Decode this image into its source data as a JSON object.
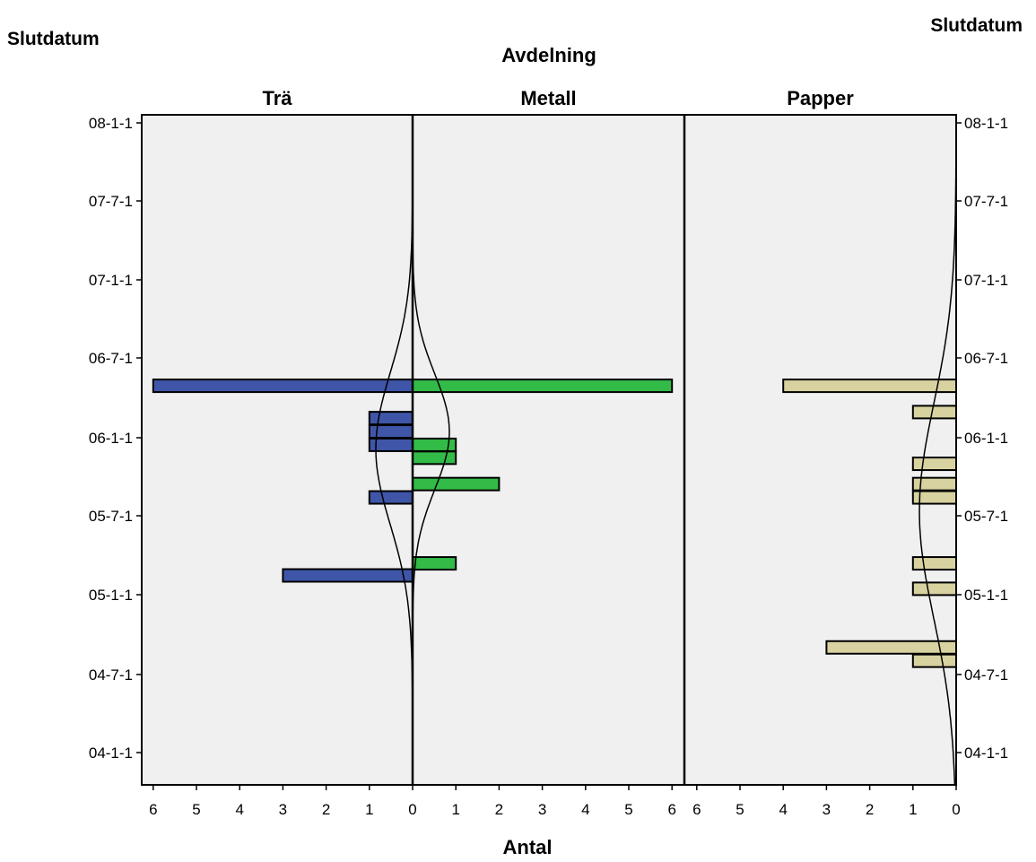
{
  "chart_data": {
    "type": "bar",
    "title_main": "Avdelning",
    "ylabel_left": "Slutdatum",
    "ylabel_right": "Slutdatum",
    "xlabel": "Antal",
    "y_ticks": [
      "04-1-1",
      "04-7-1",
      "05-1-1",
      "05-7-1",
      "06-1-1",
      "06-7-1",
      "07-1-1",
      "07-7-1",
      "08-1-1"
    ],
    "x_ticks": [
      "6",
      "5",
      "4",
      "3",
      "2",
      "1",
      "0"
    ],
    "x_ticks_mid": [
      "0",
      "1",
      "2",
      "3",
      "4",
      "5",
      "6"
    ],
    "xlim": [
      0,
      6
    ],
    "colors": {
      "Trä": "#3f56a8",
      "Metall": "#33bb48",
      "Papper": "#d8d2a0",
      "panel": "#f0f0f0"
    },
    "panels": [
      {
        "name": "Trä",
        "direction": "left",
        "bars": [
          {
            "date": "2006-05-01",
            "value": 6
          },
          {
            "date": "2006-02-15",
            "value": 1
          },
          {
            "date": "2006-01-15",
            "value": 1
          },
          {
            "date": "2005-12-15",
            "value": 1
          },
          {
            "date": "2005-08-15",
            "value": 1
          },
          {
            "date": "2005-02-15",
            "value": 3
          }
        ]
      },
      {
        "name": "Metall",
        "direction": "right",
        "bars": [
          {
            "date": "2006-05-01",
            "value": 6
          },
          {
            "date": "2005-12-15",
            "value": 1
          },
          {
            "date": "2005-11-15",
            "value": 1
          },
          {
            "date": "2005-09-15",
            "value": 2
          },
          {
            "date": "2005-03-15",
            "value": 1
          }
        ]
      },
      {
        "name": "Papper",
        "direction": "left",
        "bars": [
          {
            "date": "2006-05-01",
            "value": 4
          },
          {
            "date": "2006-03-01",
            "value": 1
          },
          {
            "date": "2005-11-01",
            "value": 1
          },
          {
            "date": "2005-09-15",
            "value": 1
          },
          {
            "date": "2005-08-15",
            "value": 1
          },
          {
            "date": "2005-03-15",
            "value": 1
          },
          {
            "date": "2005-01-15",
            "value": 1
          },
          {
            "date": "2004-09-01",
            "value": 3
          },
          {
            "date": "2004-08-01",
            "value": 1
          }
        ]
      }
    ]
  }
}
